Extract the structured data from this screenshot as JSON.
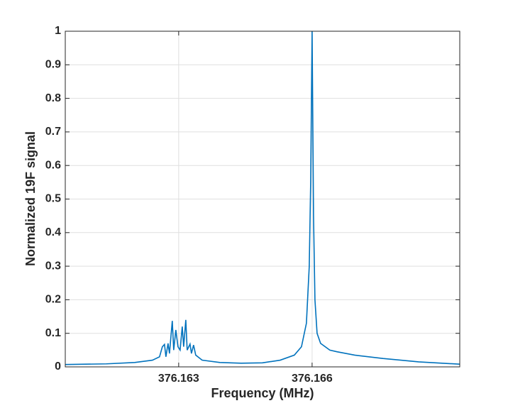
{
  "chart_data": {
    "type": "line",
    "x_label": "Frequency (MHz)",
    "y_label": "Normalized 19F signal",
    "x": [
      376.16045,
      376.161372,
      376.162011,
      376.16241,
      376.162569,
      376.162633,
      376.162681,
      376.162713,
      376.162761,
      376.162793,
      376.162856,
      376.162888,
      376.162936,
      376.162984,
      376.163032,
      376.16308,
      376.163112,
      376.16316,
      376.163191,
      376.163255,
      376.163287,
      376.163335,
      376.163383,
      376.163527,
      376.163926,
      376.164404,
      376.164883,
      376.165282,
      376.165601,
      376.165761,
      376.165872,
      376.165936,
      376.165968,
      376.166,
      376.166032,
      376.166064,
      376.166112,
      376.166191,
      376.166399,
      376.166559,
      376.166958,
      376.167596,
      376.168394,
      376.16932
    ],
    "series": [
      {
        "name": "signal",
        "color": "#0072bd",
        "values": [
          0.007,
          0.009,
          0.013,
          0.02,
          0.03,
          0.06,
          0.067,
          0.03,
          0.07,
          0.04,
          0.137,
          0.05,
          0.11,
          0.06,
          0.05,
          0.12,
          0.06,
          0.14,
          0.05,
          0.068,
          0.04,
          0.065,
          0.035,
          0.02,
          0.013,
          0.011,
          0.012,
          0.02,
          0.035,
          0.06,
          0.13,
          0.3,
          0.55,
          1.0,
          0.45,
          0.2,
          0.1,
          0.07,
          0.05,
          0.045,
          0.035,
          0.025,
          0.015,
          0.008
        ]
      }
    ],
    "xlim": [
      376.16045,
      376.16932
    ],
    "ylim": [
      0,
      1
    ],
    "xticks": [
      376.163,
      376.166
    ],
    "yticks": [
      0,
      0.1,
      0.2,
      0.3,
      0.4,
      0.5,
      0.6,
      0.7,
      0.8,
      0.9,
      1
    ],
    "grid": true
  }
}
